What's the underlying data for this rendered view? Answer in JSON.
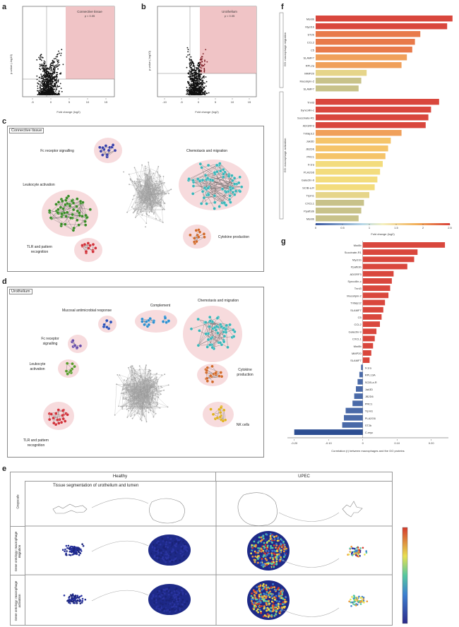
{
  "panels": {
    "a": {
      "letter": "a",
      "tag": "Connective tissue",
      "tag_sub": "p < 0.05",
      "xlabel": "Fold change (log2)",
      "ylabel": "p-value (-log10)",
      "xticks": [
        "-5",
        "0",
        "5",
        "10",
        "15"
      ]
    },
    "b": {
      "letter": "b",
      "tag": "Urothelium",
      "tag_sub": "p < 0.05",
      "xlabel": "Fold change (log2)",
      "ylabel": "p-value (-log10)",
      "xticks": [
        "-10",
        "-5",
        "0",
        "5",
        "10",
        "15"
      ]
    },
    "c": {
      "letter": "c",
      "title": "Connective tissue",
      "clusters": [
        {
          "label": "Fc receptor signalling"
        },
        {
          "label": "Chemotaxis and migration"
        },
        {
          "label": "Leukocyte activation"
        },
        {
          "label": "Cytokine production"
        },
        {
          "label": "TLR and pattern\nrecognition"
        }
      ]
    },
    "d": {
      "letter": "d",
      "title": "Urothelium",
      "clusters": [
        {
          "label": "Mucosal antimicrobial response"
        },
        {
          "label": "Complement"
        },
        {
          "label": "Chemotaxis and migration"
        },
        {
          "label": "Fc receptor\nsignalling"
        },
        {
          "label": "Leukocyte\nactivation"
        },
        {
          "label": "Cytokine\nproduction"
        },
        {
          "label": "TLR and pattern\nrecognition"
        },
        {
          "label": "NK cells"
        }
      ]
    },
    "e": {
      "letter": "e",
      "col_healthy": "Healthy",
      "col_upec": "UPEC",
      "row1_label": "Grayscale",
      "row1_caption": "Tissue segmentation of urothelium and lumen",
      "row2_label": "Gene ontology: macrophage migration",
      "row3_label": "Gene ontology: macrophage activation"
    },
    "f": {
      "letter": "f",
      "group1_label": "GO: macrophage migration",
      "group2_label": "GO: macrophage activation",
      "xlabel": "Fold change (log2)",
      "xticks": [
        "0",
        "0.5",
        "1",
        "1.5",
        "2",
        "2.5"
      ]
    },
    "g": {
      "letter": "g",
      "xlabel": "Correlation (r) between macrophages and the GO proteins",
      "xticks": [
        "-0.20",
        "-0.10",
        "0",
        "0.10",
        "0.20"
      ]
    }
  },
  "chart_data": [
    {
      "type": "bar",
      "id": "f",
      "orientation": "horizontal",
      "xlabel": "Fold change (log2)",
      "xlim": [
        0,
        2.5
      ],
      "categories": [
        "Msr8b",
        "Mycl1b",
        "ST2b",
        "CCL2",
        "C5",
        "SLAMF7",
        "RPL2a",
        "MMP20",
        "Mucolipin-2",
        "SLAMF7",
        "Tnni3",
        "Syncollin-c",
        "Succinate-R1",
        "ADGRF3",
        "Tnfaip12",
        "Jak3D",
        "JB2D6",
        "PRC1",
        "Il-1ra",
        "PLA2G6",
        "Galectin-9",
        "SCIB-a.R",
        "Trpm1",
        "CXCL1",
        "Ppafb3b",
        "Msr8b"
      ],
      "values": [
        2.55,
        2.45,
        1.95,
        1.85,
        1.8,
        1.7,
        1.6,
        0.95,
        0.85,
        0.8,
        2.3,
        2.15,
        2.1,
        2.05,
        1.6,
        1.4,
        1.35,
        1.3,
        1.25,
        1.2,
        1.15,
        1.1,
        1.0,
        0.9,
        0.85,
        0.8
      ]
    },
    {
      "type": "bar",
      "id": "g",
      "orientation": "horizontal",
      "xlabel": "Correlation (r) between macrophages and the GO proteins",
      "xlim": [
        -0.22,
        0.25
      ],
      "categories": [
        "Msr8b",
        "Succinate-R1",
        "Mycl1b",
        "Ppafb3b",
        "ADGRF3",
        "Syncollin-c",
        "Tnni3",
        "Mucolipin-2",
        "Tnfaip12",
        "SLAMF7",
        "C5",
        "CCL2",
        "Galectin-9",
        "CXCL1",
        "Msr8b",
        "MMP20",
        "SLAMF7",
        "Il-1ra",
        "RPL13A",
        "SCIB-a.R",
        "Jak3D",
        "JB2D6",
        "PRC1",
        "Trpm1",
        "PLA2G6",
        "ST2b",
        "C-myc"
      ],
      "values": [
        0.24,
        0.16,
        0.15,
        0.13,
        0.09,
        0.085,
        0.08,
        0.075,
        0.065,
        0.06,
        0.055,
        0.05,
        0.04,
        0.035,
        0.03,
        0.025,
        0.02,
        -0.005,
        -0.01,
        -0.015,
        -0.02,
        -0.025,
        -0.03,
        -0.05,
        -0.055,
        -0.06,
        -0.2
      ]
    }
  ]
}
